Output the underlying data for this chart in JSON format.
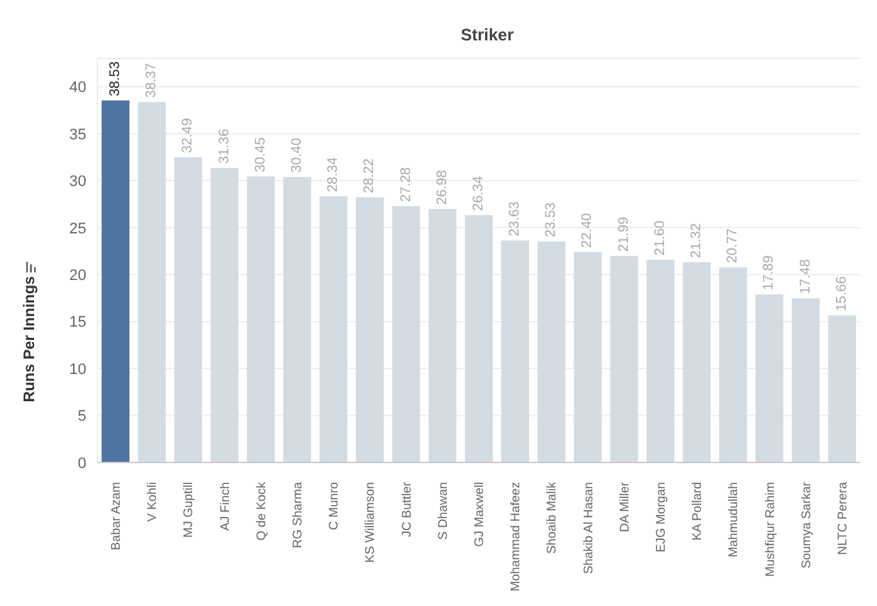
{
  "chart_data": {
    "type": "bar",
    "title": "Striker",
    "ylabel": "Runs Per Innings",
    "categories": [
      "Babar Azam",
      "V Kohli",
      "MJ Guptill",
      "AJ Finch",
      "Q de Kock",
      "RG Sharma",
      "C Munro",
      "KS Williamson",
      "JC Buttler",
      "S Dhawan",
      "GJ Maxwell",
      "Mohammad Hafeez",
      "Shoaib Malik",
      "Shakib Al Hasan",
      "DA Miller",
      "EJG Morgan",
      "KA Pollard",
      "Mahmudullah",
      "Mushfiqur Rahim",
      "Soumya Sarkar",
      "NLTC Perera"
    ],
    "values": [
      38.53,
      38.37,
      32.49,
      31.36,
      30.45,
      30.4,
      28.34,
      28.22,
      27.28,
      26.98,
      26.34,
      23.63,
      23.53,
      22.4,
      21.99,
      21.6,
      21.32,
      20.77,
      17.89,
      17.48,
      15.66
    ],
    "colors": [
      "#4e76a2",
      "#d3dbe3",
      "#d3dbe3",
      "#d3dbe3",
      "#d3dbe3",
      "#d3dbe3",
      "#d3dbe3",
      "#d3dbe3",
      "#d3dbe3",
      "#d3dbe3",
      "#d3dbe3",
      "#d3dbe3",
      "#d3dbe3",
      "#d3dbe3",
      "#d3dbe3",
      "#d3dbe3",
      "#d3dbe3",
      "#d3dbe3",
      "#d3dbe3",
      "#d3dbe3",
      "#d3dbe3"
    ],
    "value_labels": [
      "38.53",
      "38.37",
      "32.49",
      "31.36",
      "30.45",
      "30.40",
      "28.34",
      "28.22",
      "27.28",
      "26.98",
      "26.34",
      "23.63",
      "23.53",
      "22.40",
      "21.99",
      "21.60",
      "21.32",
      "20.77",
      "17.89",
      "17.48",
      "15.66"
    ],
    "ylim": [
      0,
      43
    ],
    "yticks": [
      0,
      5,
      10,
      15,
      20,
      25,
      30,
      35,
      40
    ],
    "grid": "y"
  }
}
